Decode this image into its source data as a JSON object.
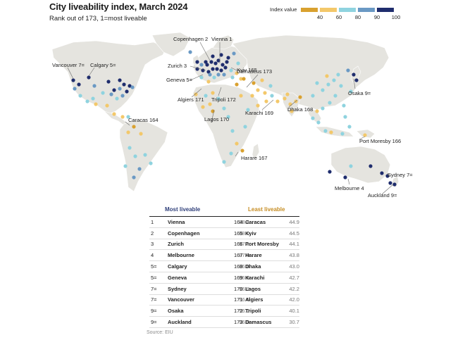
{
  "title": "City liveability index, March 2024",
  "subtitle": "Rank out of 173, 1=most liveable",
  "legend": {
    "label": "Index value",
    "ticks": [
      "40",
      "60",
      "80",
      "90",
      "100"
    ],
    "colors": [
      "#d9a12f",
      "#f3c86a",
      "#8fd3df",
      "#6a99c4",
      "#1f2d6d"
    ]
  },
  "map_labels": {
    "copenhagen": "Copenhagen 2",
    "vienna": "Vienna 1",
    "zurich": "Zurich 3",
    "geneva": "Geneva 5=",
    "algiers": "Algiers 171",
    "tripoli": "Tripoli 172",
    "kyiv": "Kyiv 165",
    "damascus": "Damascus 173",
    "karachi": "Karachi 169",
    "dhaka": "Dhaka 168",
    "osaka": "Osaka 9=",
    "vancouver": "Vancouver 7=",
    "calgary": "Calgary 5=",
    "caracas": "Caracas 164",
    "lagos": "Lagos 170",
    "harare": "Harare 167",
    "port_moresby": "Port Moresby 166",
    "sydney": "Sydney 7=",
    "melbourne": "Melbourne 4",
    "auckland": "Auckland 9="
  },
  "tables": {
    "most": {
      "header": "Most liveable",
      "rows": [
        {
          "rank": "1",
          "city": "Vienna",
          "score": "98.4"
        },
        {
          "rank": "2",
          "city": "Copenhagen",
          "score": "98.0"
        },
        {
          "rank": "3",
          "city": "Zurich",
          "score": "97.1"
        },
        {
          "rank": "4",
          "city": "Melbourne",
          "score": "97.0"
        },
        {
          "rank": "5=",
          "city": "Calgary",
          "score": "96.8"
        },
        {
          "rank": "5=",
          "city": "Geneva",
          "score": "96.8"
        },
        {
          "rank": "7=",
          "city": "Sydney",
          "score": "96.6"
        },
        {
          "rank": "7=",
          "city": "Vancouver",
          "score": "96.6"
        },
        {
          "rank": "9=",
          "city": "Osaka",
          "score": "96.0"
        },
        {
          "rank": "9=",
          "city": "Auckland",
          "score": "96.0"
        }
      ]
    },
    "least": {
      "header": "Least liveable",
      "rows": [
        {
          "rank": "164",
          "city": "Caracas",
          "score": "44.9"
        },
        {
          "rank": "165",
          "city": "Kyiv",
          "score": "44.5"
        },
        {
          "rank": "166",
          "city": "Port Moresby",
          "score": "44.1"
        },
        {
          "rank": "167",
          "city": "Harare",
          "score": "43.8"
        },
        {
          "rank": "168",
          "city": "Dhaka",
          "score": "43.0"
        },
        {
          "rank": "169",
          "city": "Karachi",
          "score": "42.7"
        },
        {
          "rank": "170",
          "city": "Lagos",
          "score": "42.2"
        },
        {
          "rank": "171",
          "city": "Algiers",
          "score": "42.0"
        },
        {
          "rank": "172",
          "city": "Tripoli",
          "score": "40.1"
        },
        {
          "rank": "173",
          "city": "Damascus",
          "score": "30.7"
        }
      ]
    }
  },
  "source": "Source: EIU"
}
